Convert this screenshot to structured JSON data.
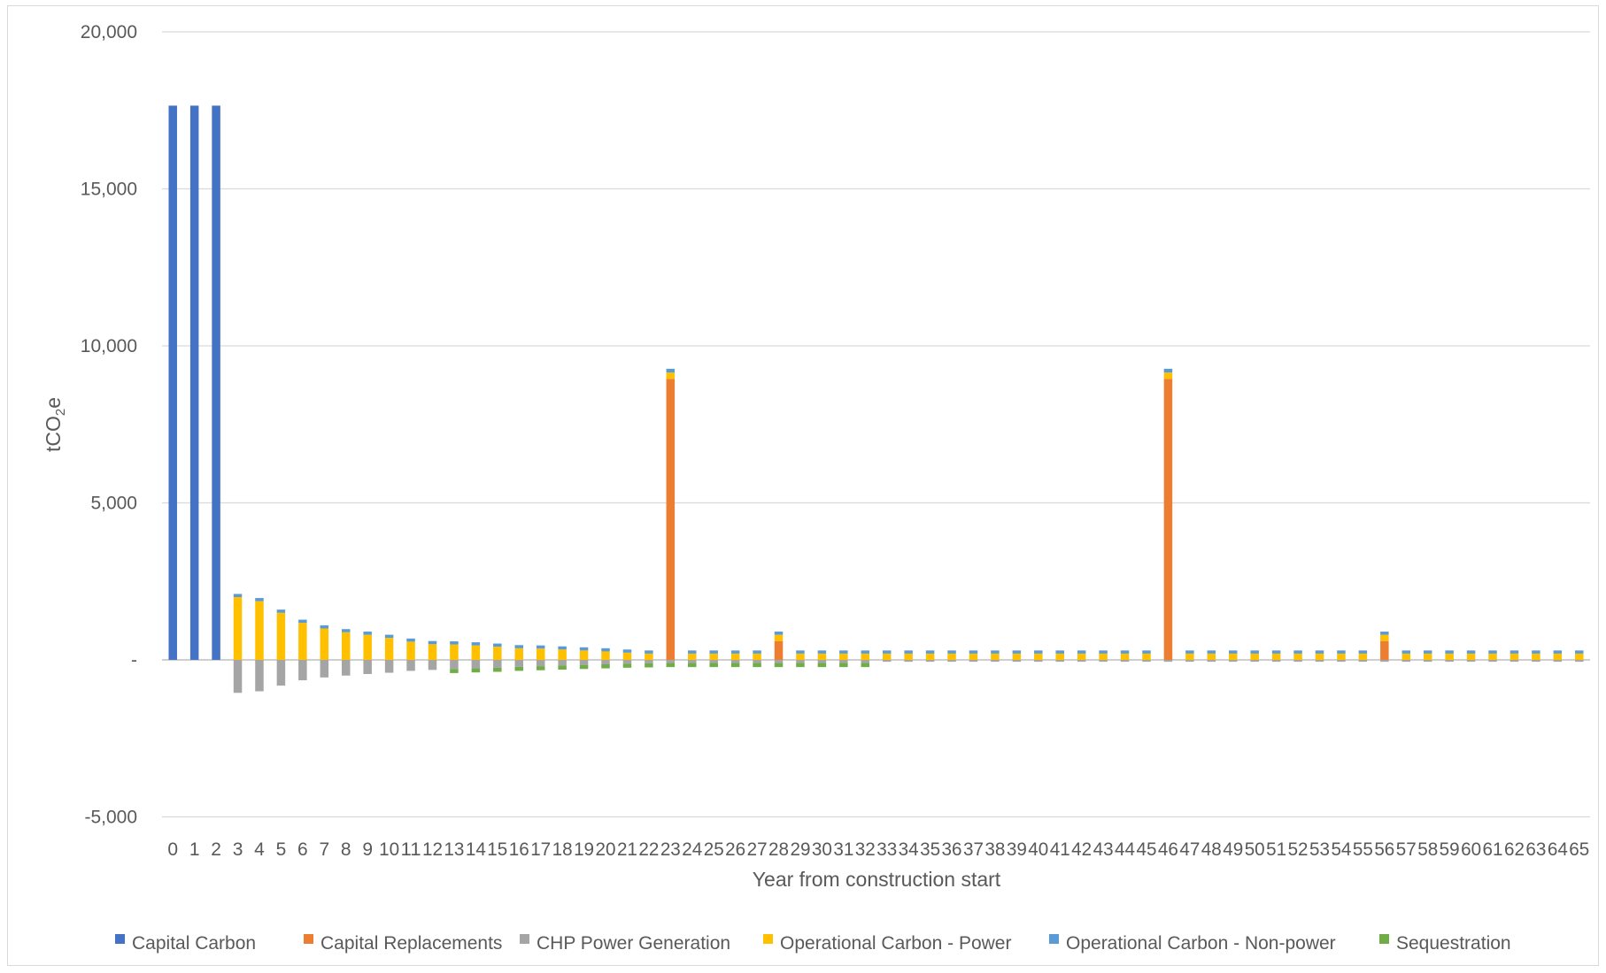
{
  "chart_data": {
    "type": "bar",
    "stacked": true,
    "title": "",
    "xlabel": "Year from construction start",
    "ylabel": "tCO2e",
    "ylabel_main": "tCO",
    "ylabel_sub": "2",
    "ylabel_tail": "e",
    "ylim": [
      -5000,
      20000
    ],
    "y_ticks": [
      {
        "value": 20000,
        "label": "20,000"
      },
      {
        "value": 15000,
        "label": "15,000"
      },
      {
        "value": 10000,
        "label": "10,000"
      },
      {
        "value": 5000,
        "label": "5,000"
      },
      {
        "value": 0,
        "label": "-"
      },
      {
        "value": -5000,
        "label": "-5,000"
      }
    ],
    "grid": true,
    "legend_position": "bottom",
    "categories": [
      "0",
      "1",
      "2",
      "3",
      "4",
      "5",
      "6",
      "7",
      "8",
      "9",
      "10",
      "11",
      "12",
      "13",
      "14",
      "15",
      "16",
      "17",
      "18",
      "19",
      "20",
      "21",
      "22",
      "23",
      "24",
      "25",
      "26",
      "27",
      "28",
      "29",
      "30",
      "31",
      "32",
      "33",
      "34",
      "35",
      "36",
      "37",
      "38",
      "39",
      "40",
      "41",
      "42",
      "43",
      "44",
      "45",
      "46",
      "47",
      "48",
      "49",
      "50",
      "51",
      "52",
      "53",
      "54",
      "55",
      "56",
      "57",
      "58",
      "59",
      "60",
      "61",
      "62",
      "63",
      "64",
      "65"
    ],
    "series": [
      {
        "name": "Capital Carbon",
        "color": "#4472c4",
        "values": [
          17650,
          17650,
          17650,
          0,
          0,
          0,
          0,
          0,
          0,
          0,
          0,
          0,
          0,
          0,
          0,
          0,
          0,
          0,
          0,
          0,
          0,
          0,
          0,
          0,
          0,
          0,
          0,
          0,
          0,
          0,
          0,
          0,
          0,
          0,
          0,
          0,
          0,
          0,
          0,
          0,
          0,
          0,
          0,
          0,
          0,
          0,
          0,
          0,
          0,
          0,
          0,
          0,
          0,
          0,
          0,
          0,
          0,
          0,
          0,
          0,
          0,
          0,
          0,
          0,
          0,
          0
        ]
      },
      {
        "name": "Capital Replacements",
        "color": "#ed7d31",
        "values": [
          0,
          0,
          0,
          0,
          0,
          0,
          0,
          0,
          0,
          0,
          0,
          0,
          0,
          0,
          0,
          0,
          0,
          0,
          0,
          0,
          0,
          0,
          0,
          8950,
          0,
          0,
          0,
          0,
          600,
          0,
          0,
          0,
          0,
          0,
          0,
          0,
          0,
          0,
          0,
          0,
          0,
          0,
          0,
          0,
          0,
          0,
          8950,
          0,
          0,
          0,
          0,
          0,
          0,
          0,
          0,
          0,
          600,
          0,
          0,
          0,
          0,
          0,
          0,
          0,
          0,
          0
        ]
      },
      {
        "name": "CHP Power Generation",
        "color": "#a5a5a5",
        "values": [
          0,
          0,
          0,
          -1050,
          -1000,
          -820,
          -650,
          -560,
          -500,
          -450,
          -410,
          -350,
          -320,
          -290,
          -270,
          -250,
          -220,
          -200,
          -180,
          -160,
          -140,
          -120,
          -110,
          -100,
          -100,
          -100,
          -100,
          -100,
          -100,
          -100,
          -100,
          -100,
          -100,
          -60,
          -60,
          -60,
          -60,
          -60,
          -60,
          -60,
          -60,
          -60,
          -60,
          -60,
          -60,
          -60,
          -60,
          -60,
          -60,
          -60,
          -60,
          -60,
          -60,
          -60,
          -60,
          -60,
          -60,
          -60,
          -60,
          -60,
          -60,
          -60,
          -60,
          -60,
          -60,
          -60
        ]
      },
      {
        "name": "Operational Carbon - Power",
        "color": "#ffc000",
        "values": [
          0,
          0,
          0,
          2000,
          1870,
          1500,
          1180,
          1000,
          880,
          800,
          700,
          580,
          500,
          490,
          460,
          420,
          370,
          360,
          330,
          300,
          270,
          230,
          200,
          200,
          200,
          200,
          200,
          200,
          200,
          200,
          200,
          200,
          200,
          200,
          200,
          200,
          200,
          200,
          200,
          200,
          200,
          200,
          200,
          200,
          200,
          200,
          200,
          200,
          200,
          200,
          200,
          200,
          200,
          200,
          200,
          200,
          200,
          200,
          200,
          200,
          200,
          200,
          200,
          200,
          200,
          200
        ]
      },
      {
        "name": "Operational Carbon - Non-power",
        "color": "#5b9bd5",
        "values": [
          0,
          0,
          0,
          100,
          100,
          100,
          100,
          100,
          100,
          100,
          100,
          100,
          100,
          100,
          100,
          100,
          100,
          100,
          100,
          100,
          100,
          100,
          100,
          120,
          100,
          100,
          100,
          100,
          100,
          100,
          100,
          100,
          100,
          100,
          100,
          100,
          100,
          100,
          100,
          100,
          100,
          100,
          100,
          100,
          100,
          100,
          120,
          100,
          100,
          100,
          100,
          100,
          100,
          100,
          100,
          100,
          100,
          100,
          100,
          100,
          100,
          100,
          100,
          100,
          100,
          100
        ]
      },
      {
        "name": "Sequestration",
        "color": "#70ad47",
        "values": [
          0,
          0,
          0,
          0,
          0,
          0,
          0,
          0,
          0,
          0,
          0,
          0,
          0,
          -130,
          -130,
          -130,
          -130,
          -130,
          -130,
          -130,
          -130,
          -130,
          -130,
          -130,
          -130,
          -130,
          -130,
          -130,
          -130,
          -130,
          -130,
          -130,
          -130,
          0,
          0,
          0,
          0,
          0,
          0,
          0,
          0,
          0,
          0,
          0,
          0,
          0,
          0,
          0,
          0,
          0,
          0,
          0,
          0,
          0,
          0,
          0,
          0,
          0,
          0,
          0,
          0,
          0,
          0,
          0,
          0,
          0
        ]
      }
    ]
  }
}
